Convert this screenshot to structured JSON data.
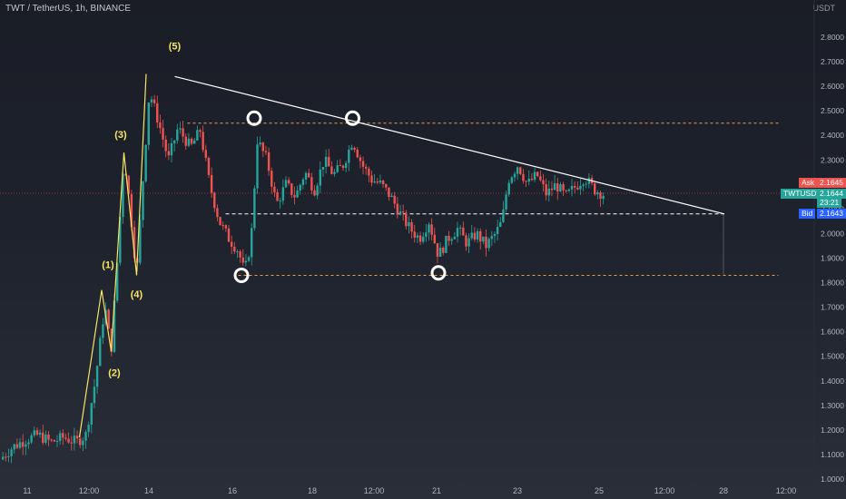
{
  "header": {
    "symbol_title": "TWT / TetherUS, 1h, BINANCE",
    "axis_unit": "USDT"
  },
  "price_tags": {
    "ask_label": "Ask",
    "ask_value": "2.1645",
    "symbol_label": "TWTUSDT",
    "last_value": "2.1644",
    "countdown": "23:21",
    "bid_label": "Bid",
    "bid_value": "2.1643"
  },
  "colors": {
    "up": "#26a69a",
    "down": "#ef5350",
    "trend": "#ffffff",
    "level": "#f0a040",
    "wave": "#f5e663",
    "ask": "#ef5350",
    "bid": "#2962ff",
    "last": "#26a69a"
  },
  "chart_data": {
    "type": "candlestick",
    "y_ticks": [
      "2.8000",
      "2.7000",
      "2.6000",
      "2.5000",
      "2.4000",
      "2.3000",
      "2.2000",
      "2.1000",
      "2.0000",
      "1.9000",
      "1.8000",
      "1.7000",
      "1.6000",
      "1.5000",
      "1.4000",
      "1.3000",
      "1.2000",
      "1.1000",
      "1.0000"
    ],
    "x_ticks": [
      "11",
      "12:00",
      "14",
      "16",
      "18",
      "12:00",
      "21",
      "23",
      "25",
      "12:00",
      "28",
      "12:00"
    ],
    "ylim": [
      1.0,
      2.8
    ],
    "wave_labels": [
      {
        "text": "(5)",
        "x": 5.5,
        "y": 2.75
      },
      {
        "text": "(3)",
        "x": 3.8,
        "y": 2.39
      },
      {
        "text": "(1)",
        "x": 3.4,
        "y": 1.86
      },
      {
        "text": "(4)",
        "x": 4.3,
        "y": 1.74
      },
      {
        "text": "(2)",
        "x": 3.6,
        "y": 1.42
      }
    ],
    "elliott_path": [
      [
        2.5,
        1.17
      ],
      [
        3.2,
        1.77
      ],
      [
        3.5,
        1.52
      ],
      [
        3.9,
        2.33
      ],
      [
        4.3,
        1.83
      ],
      [
        4.6,
        2.65
      ]
    ],
    "trendline": [
      [
        5.5,
        2.64
      ],
      [
        22.8,
        2.08
      ]
    ],
    "levels": [
      {
        "y": 2.45,
        "x_from": 5.9,
        "x_to": 24.5,
        "style": "orange-dashed"
      },
      {
        "y": 1.83,
        "x_from": 7.5,
        "x_to": 24.5,
        "style": "orange-dashed"
      },
      {
        "y": 2.08,
        "x_from": 7.1,
        "x_to": 22.8,
        "style": "white-dashed"
      }
    ],
    "markers": [
      {
        "x": 8.0,
        "y": 2.47
      },
      {
        "x": 11.1,
        "y": 2.47
      },
      {
        "x": 7.6,
        "y": 1.83
      },
      {
        "x": 13.8,
        "y": 1.84
      }
    ],
    "close_path": [
      [
        0.0,
        1.08
      ],
      [
        0.4,
        1.13
      ],
      [
        0.8,
        1.16
      ],
      [
        1.2,
        1.18
      ],
      [
        1.6,
        1.15
      ],
      [
        2.0,
        1.17
      ],
      [
        2.4,
        1.15
      ],
      [
        2.7,
        1.18
      ],
      [
        3.0,
        1.4
      ],
      [
        3.3,
        1.71
      ],
      [
        3.5,
        1.52
      ],
      [
        3.7,
        1.9
      ],
      [
        3.9,
        2.32
      ],
      [
        4.1,
        2.1
      ],
      [
        4.3,
        1.83
      ],
      [
        4.5,
        2.22
      ],
      [
        4.7,
        2.58
      ],
      [
        5.0,
        2.45
      ],
      [
        5.3,
        2.3
      ],
      [
        5.6,
        2.43
      ],
      [
        6.0,
        2.35
      ],
      [
        6.3,
        2.42
      ],
      [
        6.6,
        2.2
      ],
      [
        6.9,
        2.05
      ],
      [
        7.2,
        1.98
      ],
      [
        7.5,
        1.93
      ],
      [
        7.7,
        1.84
      ],
      [
        7.9,
        1.97
      ],
      [
        8.1,
        2.38
      ],
      [
        8.4,
        2.3
      ],
      [
        8.7,
        2.12
      ],
      [
        9.0,
        2.2
      ],
      [
        9.3,
        2.15
      ],
      [
        9.6,
        2.25
      ],
      [
        9.9,
        2.18
      ],
      [
        10.2,
        2.3
      ],
      [
        10.5,
        2.24
      ],
      [
        10.8,
        2.28
      ],
      [
        11.1,
        2.38
      ],
      [
        11.4,
        2.28
      ],
      [
        11.7,
        2.22
      ],
      [
        12.0,
        2.2
      ],
      [
        12.3,
        2.15
      ],
      [
        12.6,
        2.08
      ],
      [
        12.9,
        2.02
      ],
      [
        13.2,
        1.98
      ],
      [
        13.5,
        2.05
      ],
      [
        13.8,
        1.91
      ],
      [
        14.1,
        1.98
      ],
      [
        14.4,
        2.02
      ],
      [
        14.7,
        1.96
      ],
      [
        15.0,
        2.0
      ],
      [
        15.3,
        1.95
      ],
      [
        15.6,
        2.0
      ],
      [
        15.8,
        2.05
      ],
      [
        16.0,
        2.22
      ],
      [
        16.3,
        2.28
      ],
      [
        16.6,
        2.2
      ],
      [
        16.9,
        2.24
      ],
      [
        17.2,
        2.16
      ],
      [
        17.5,
        2.2
      ],
      [
        17.8,
        2.15
      ],
      [
        18.1,
        2.19
      ],
      [
        18.4,
        2.23
      ],
      [
        18.7,
        2.18
      ],
      [
        19.0,
        2.16
      ]
    ]
  }
}
